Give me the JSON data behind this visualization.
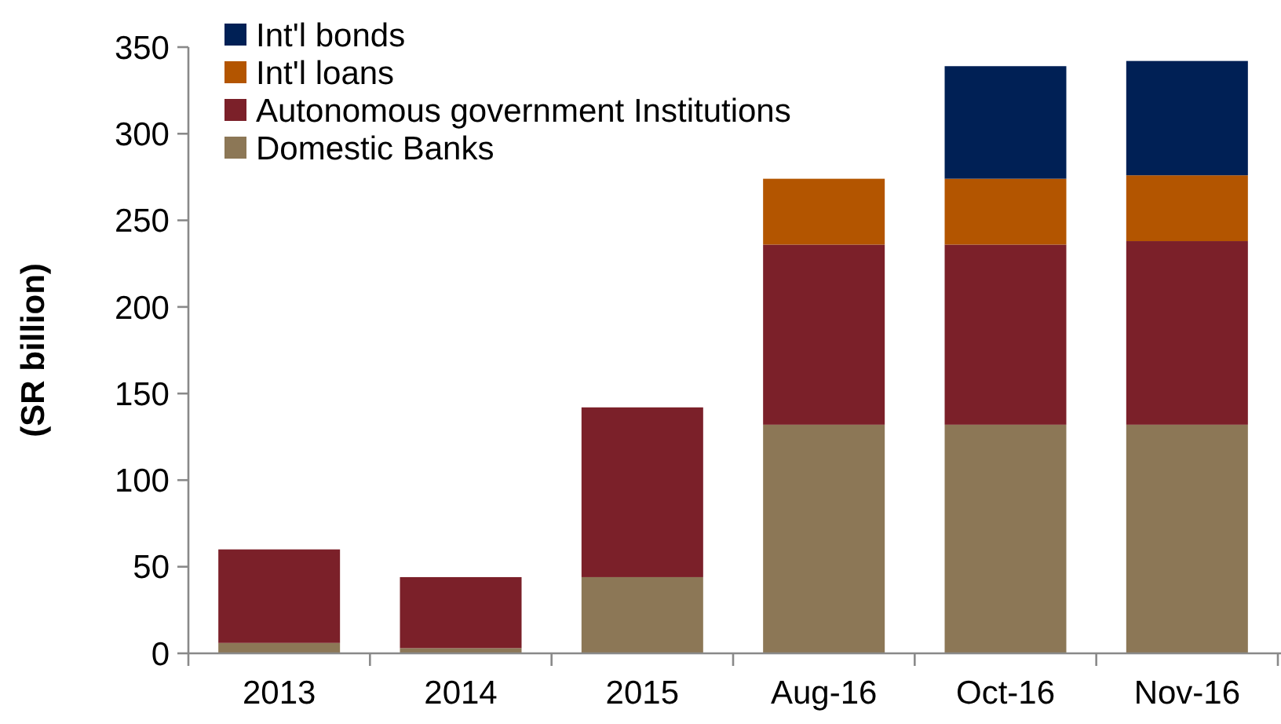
{
  "chart_data": {
    "type": "bar",
    "stacked": true,
    "ylabel": "(SR billion)",
    "categories": [
      "2013",
      "2014",
      "2015",
      "Aug-16",
      "Oct-16",
      "Nov-16"
    ],
    "series": [
      {
        "name": "Domestic Banks",
        "color": "#8c7756",
        "values": [
          6,
          3,
          44,
          132,
          132,
          132
        ]
      },
      {
        "name": "Autonomous government Institutions",
        "color": "#7b2029",
        "values": [
          54,
          41,
          98,
          104,
          104,
          106
        ]
      },
      {
        "name": "Int'l loans",
        "color": "#b35500",
        "values": [
          null,
          null,
          null,
          38,
          38,
          38
        ]
      },
      {
        "name": "Int'l bonds",
        "color": "#002055",
        "values": [
          null,
          null,
          null,
          null,
          65,
          66
        ]
      }
    ],
    "ylim": [
      0,
      350
    ],
    "yticks": [
      0,
      50,
      100,
      150,
      200,
      250,
      300,
      350
    ],
    "grid": false,
    "legend": "top left"
  }
}
